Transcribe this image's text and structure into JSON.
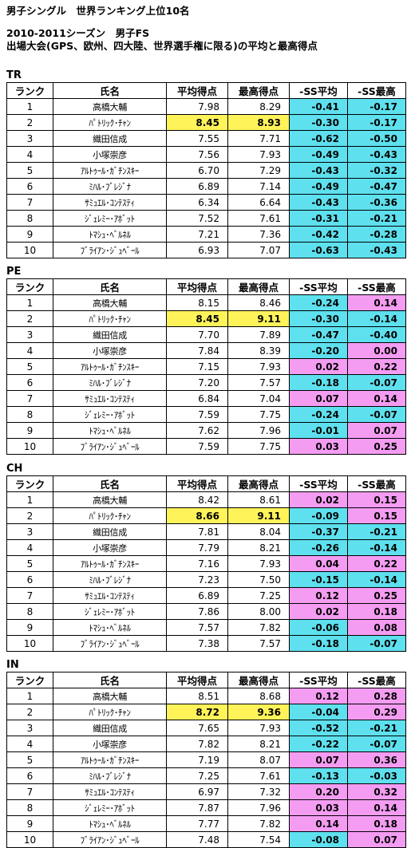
{
  "title": "男子シングル　世界ランキング上位10名",
  "season": "2010-2011シーズン　男子FS",
  "subtitle": "出場大会(GPS、欧州、四大陸、世界選手権に限る)の平均と最高得点",
  "columns": [
    "ランク",
    "氏名",
    "平均得点",
    "最高得点",
    "-SS平均",
    "-SS最高"
  ],
  "colors": {
    "highlight": "#fff35a",
    "negative": "#5ee0ee",
    "positive": "#f49cf2"
  },
  "sections": [
    {
      "label": "TR",
      "rows": [
        {
          "rank": "1",
          "name": "高橋大輔",
          "avg": "7.98",
          "max": "8.29",
          "d1": "-0.41",
          "d2": "-0.17"
        },
        {
          "rank": "2",
          "name": "ﾊﾟﾄﾘｯｸ･ﾁｬﾝ",
          "avg": "8.45",
          "max": "8.93",
          "d1": "-0.30",
          "d2": "-0.17"
        },
        {
          "rank": "3",
          "name": "織田信成",
          "avg": "7.55",
          "max": "7.71",
          "d1": "-0.62",
          "d2": "-0.50"
        },
        {
          "rank": "4",
          "name": "小塚崇彦",
          "avg": "7.56",
          "max": "7.93",
          "d1": "-0.49",
          "d2": "-0.43"
        },
        {
          "rank": "5",
          "name": "ｱﾙﾄｩｰﾙ･ｶﾞﾁﾝｽｷｰ",
          "avg": "6.70",
          "max": "7.29",
          "d1": "-0.43",
          "d2": "-0.32"
        },
        {
          "rank": "6",
          "name": "ﾐﾊﾙ･ﾌﾞﾚｼﾞﾅ",
          "avg": "6.89",
          "max": "7.14",
          "d1": "-0.49",
          "d2": "-0.47"
        },
        {
          "rank": "7",
          "name": "ｻﾐｭｴﾙ･ｺﾝﾃｽﾃｨ",
          "avg": "6.34",
          "max": "6.64",
          "d1": "-0.43",
          "d2": "-0.36"
        },
        {
          "rank": "8",
          "name": "ｼﾞｪﾚﾐｰ･ｱﾎﾞｯﾄ",
          "avg": "7.52",
          "max": "7.61",
          "d1": "-0.31",
          "d2": "-0.21"
        },
        {
          "rank": "9",
          "name": "ﾄﾏｼｭ･ﾍﾞﾙﾈﾙ",
          "avg": "7.21",
          "max": "7.36",
          "d1": "-0.42",
          "d2": "-0.28"
        },
        {
          "rank": "10",
          "name": "ﾌﾞﾗｲｱﾝ･ｼﾞｭﾍﾞｰﾙ",
          "avg": "6.93",
          "max": "7.07",
          "d1": "-0.63",
          "d2": "-0.43"
        }
      ]
    },
    {
      "label": "PE",
      "rows": [
        {
          "rank": "1",
          "name": "高橋大輔",
          "avg": "8.15",
          "max": "8.46",
          "d1": "-0.24",
          "d2": "0.14"
        },
        {
          "rank": "2",
          "name": "ﾊﾟﾄﾘｯｸ･ﾁｬﾝ",
          "avg": "8.45",
          "max": "9.11",
          "d1": "-0.30",
          "d2": "-0.14"
        },
        {
          "rank": "3",
          "name": "織田信成",
          "avg": "7.70",
          "max": "7.89",
          "d1": "-0.47",
          "d2": "-0.40"
        },
        {
          "rank": "4",
          "name": "小塚崇彦",
          "avg": "7.84",
          "max": "8.39",
          "d1": "-0.20",
          "d2": "0.00"
        },
        {
          "rank": "5",
          "name": "ｱﾙﾄｩｰﾙ･ｶﾞﾁﾝｽｷｰ",
          "avg": "7.15",
          "max": "7.93",
          "d1": "0.02",
          "d2": "0.22"
        },
        {
          "rank": "6",
          "name": "ﾐﾊﾙ･ﾌﾞﾚｼﾞﾅ",
          "avg": "7.20",
          "max": "7.57",
          "d1": "-0.18",
          "d2": "-0.07"
        },
        {
          "rank": "7",
          "name": "ｻﾐｭｴﾙ･ｺﾝﾃｽﾃｨ",
          "avg": "6.84",
          "max": "7.04",
          "d1": "0.07",
          "d2": "0.14"
        },
        {
          "rank": "8",
          "name": "ｼﾞｪﾚﾐｰ･ｱﾎﾞｯﾄ",
          "avg": "7.59",
          "max": "7.75",
          "d1": "-0.24",
          "d2": "-0.07"
        },
        {
          "rank": "9",
          "name": "ﾄﾏｼｭ･ﾍﾞﾙﾈﾙ",
          "avg": "7.62",
          "max": "7.96",
          "d1": "-0.01",
          "d2": "0.07"
        },
        {
          "rank": "10",
          "name": "ﾌﾞﾗｲｱﾝ･ｼﾞｭﾍﾞｰﾙ",
          "avg": "7.59",
          "max": "7.75",
          "d1": "0.03",
          "d2": "0.25"
        }
      ]
    },
    {
      "label": "CH",
      "rows": [
        {
          "rank": "1",
          "name": "高橋大輔",
          "avg": "8.42",
          "max": "8.61",
          "d1": "0.02",
          "d2": "0.15"
        },
        {
          "rank": "2",
          "name": "ﾊﾟﾄﾘｯｸ･ﾁｬﾝ",
          "avg": "8.66",
          "max": "9.11",
          "d1": "-0.09",
          "d2": "0.15"
        },
        {
          "rank": "3",
          "name": "織田信成",
          "avg": "7.81",
          "max": "8.04",
          "d1": "-0.37",
          "d2": "-0.21"
        },
        {
          "rank": "4",
          "name": "小塚崇彦",
          "avg": "7.79",
          "max": "8.21",
          "d1": "-0.26",
          "d2": "-0.14"
        },
        {
          "rank": "5",
          "name": "ｱﾙﾄｩｰﾙ･ｶﾞﾁﾝｽｷｰ",
          "avg": "7.16",
          "max": "7.93",
          "d1": "0.04",
          "d2": "0.22"
        },
        {
          "rank": "6",
          "name": "ﾐﾊﾙ･ﾌﾞﾚｼﾞﾅ",
          "avg": "7.23",
          "max": "7.50",
          "d1": "-0.15",
          "d2": "-0.14"
        },
        {
          "rank": "7",
          "name": "ｻﾐｭｴﾙ･ｺﾝﾃｽﾃｨ",
          "avg": "6.89",
          "max": "7.25",
          "d1": "0.12",
          "d2": "0.25"
        },
        {
          "rank": "8",
          "name": "ｼﾞｪﾚﾐｰ･ｱﾎﾞｯﾄ",
          "avg": "7.86",
          "max": "8.00",
          "d1": "0.02",
          "d2": "0.18"
        },
        {
          "rank": "9",
          "name": "ﾄﾏｼｭ･ﾍﾞﾙﾈﾙ",
          "avg": "7.57",
          "max": "7.82",
          "d1": "-0.06",
          "d2": "0.08"
        },
        {
          "rank": "10",
          "name": "ﾌﾞﾗｲｱﾝ･ｼﾞｭﾍﾞｰﾙ",
          "avg": "7.38",
          "max": "7.57",
          "d1": "-0.18",
          "d2": "-0.07"
        }
      ]
    },
    {
      "label": "IN",
      "rows": [
        {
          "rank": "1",
          "name": "高橋大輔",
          "avg": "8.51",
          "max": "8.68",
          "d1": "0.12",
          "d2": "0.28"
        },
        {
          "rank": "2",
          "name": "ﾊﾟﾄﾘｯｸ･ﾁｬﾝ",
          "avg": "8.72",
          "max": "9.36",
          "d1": "-0.04",
          "d2": "0.29"
        },
        {
          "rank": "3",
          "name": "織田信成",
          "avg": "7.65",
          "max": "7.93",
          "d1": "-0.52",
          "d2": "-0.21"
        },
        {
          "rank": "4",
          "name": "小塚崇彦",
          "avg": "7.82",
          "max": "8.21",
          "d1": "-0.22",
          "d2": "-0.07"
        },
        {
          "rank": "5",
          "name": "ｱﾙﾄｩｰﾙ･ｶﾞﾁﾝｽｷｰ",
          "avg": "7.19",
          "max": "8.07",
          "d1": "0.07",
          "d2": "0.36"
        },
        {
          "rank": "6",
          "name": "ﾐﾊﾙ･ﾌﾞﾚｼﾞﾅ",
          "avg": "7.25",
          "max": "7.61",
          "d1": "-0.13",
          "d2": "-0.03"
        },
        {
          "rank": "7",
          "name": "ｻﾐｭｴﾙ･ｺﾝﾃｽﾃｨ",
          "avg": "6.97",
          "max": "7.32",
          "d1": "0.20",
          "d2": "0.32"
        },
        {
          "rank": "8",
          "name": "ｼﾞｪﾚﾐｰ･ｱﾎﾞｯﾄ",
          "avg": "7.87",
          "max": "7.96",
          "d1": "0.03",
          "d2": "0.14"
        },
        {
          "rank": "9",
          "name": "ﾄﾏｼｭ･ﾍﾞﾙﾈﾙ",
          "avg": "7.77",
          "max": "7.82",
          "d1": "0.14",
          "d2": "0.18"
        },
        {
          "rank": "10",
          "name": "ﾌﾞﾗｲｱﾝ･ｼﾞｭﾍﾞｰﾙ",
          "avg": "7.48",
          "max": "7.54",
          "d1": "-0.08",
          "d2": "0.07"
        }
      ]
    }
  ]
}
